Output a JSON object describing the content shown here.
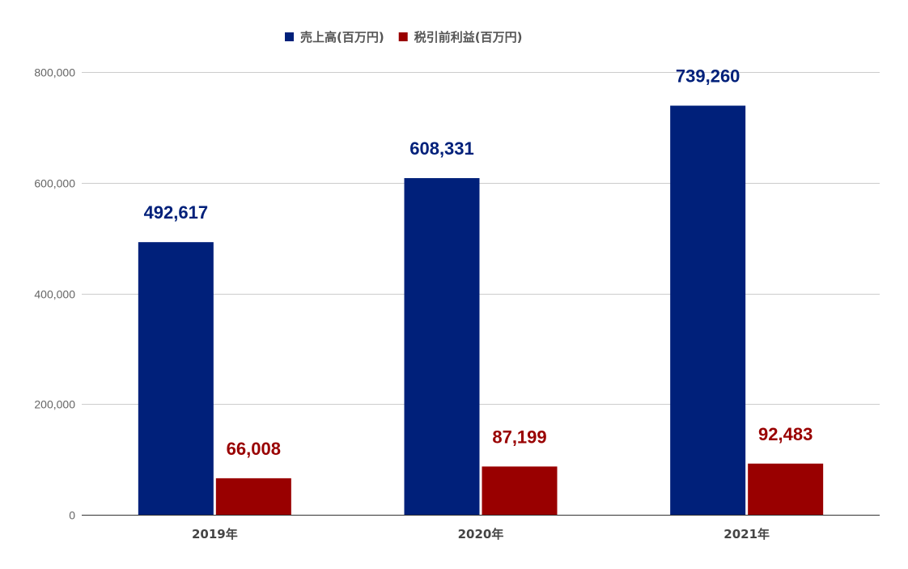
{
  "chart_data": {
    "type": "bar",
    "categories": [
      "2019年",
      "2020年",
      "2021年"
    ],
    "series": [
      {
        "name": "売上高(百万円)",
        "values": [
          492617,
          608331,
          739260
        ],
        "color": "#00207a",
        "labels": [
          "492,617",
          "608,331",
          "739,260"
        ]
      },
      {
        "name": "税引前利益(百万円)",
        "values": [
          66008,
          87199,
          92483
        ],
        "color": "#990000",
        "labels": [
          "66,008",
          "87,199",
          "92,483"
        ]
      }
    ],
    "yticks": [
      0,
      200000,
      400000,
      600000,
      800000
    ],
    "ytick_labels": [
      "0",
      "200,000",
      "400,000",
      "600,000",
      "800,000"
    ],
    "ylim": [
      0,
      800000
    ],
    "grid": true,
    "legend_position": "top-center"
  }
}
